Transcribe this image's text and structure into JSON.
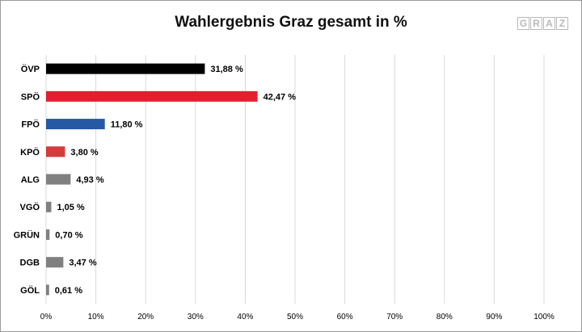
{
  "chart_data": {
    "type": "bar",
    "orientation": "horizontal",
    "title": "Wahlergebnis Graz gesamt in %",
    "categories": [
      "ÖVP",
      "SPÖ",
      "FPÖ",
      "KPÖ",
      "ALG",
      "VGÖ",
      "GRÜN",
      "DGB",
      "GÖL"
    ],
    "values": [
      31.88,
      42.47,
      11.8,
      3.8,
      4.93,
      1.05,
      0.7,
      3.47,
      0.61
    ],
    "value_labels": [
      "31,88 %",
      "42,47 %",
      "11,80 %",
      "3,80 %",
      "4,93 %",
      "1,05 %",
      "0,70 %",
      "3,47 %",
      "0,61 %"
    ],
    "colors": [
      "#000000",
      "#e31e2f",
      "#2559a3",
      "#d63a3a",
      "#808080",
      "#808080",
      "#808080",
      "#808080",
      "#808080"
    ],
    "xlim": [
      0,
      100
    ],
    "xticks": [
      "0%",
      "10%",
      "20%",
      "30%",
      "40%",
      "50%",
      "60%",
      "70%",
      "80%",
      "90%",
      "100%"
    ],
    "xlabel": "",
    "ylabel": "",
    "grid": "vertical"
  },
  "logo": {
    "letters": [
      "G",
      "R",
      "A",
      "Z"
    ]
  }
}
